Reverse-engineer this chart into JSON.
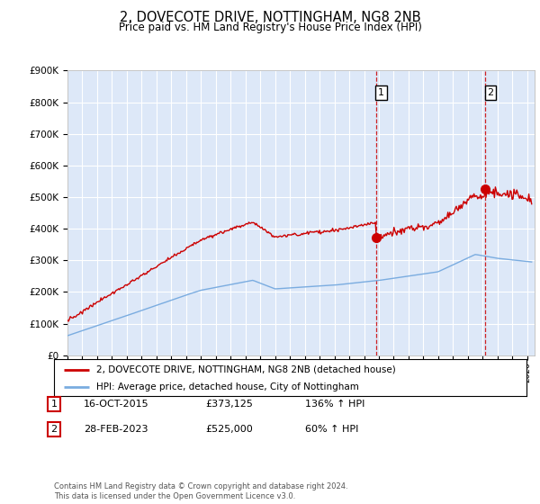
{
  "title": "2, DOVECOTE DRIVE, NOTTINGHAM, NG8 2NB",
  "subtitle": "Price paid vs. HM Land Registry's House Price Index (HPI)",
  "ylim": [
    0,
    900000
  ],
  "yticks": [
    0,
    100000,
    200000,
    300000,
    400000,
    500000,
    600000,
    700000,
    800000,
    900000
  ],
  "ytick_labels": [
    "£0",
    "£100K",
    "£200K",
    "£300K",
    "£400K",
    "£500K",
    "£600K",
    "£700K",
    "£800K",
    "£900K"
  ],
  "background_color": "#ffffff",
  "plot_bg_color": "#dde8f8",
  "grid_color": "#ffffff",
  "red_line_color": "#cc0000",
  "blue_line_color": "#7aace0",
  "marker1_date": 2015.79,
  "marker1_value": 373125,
  "marker2_date": 2023.16,
  "marker2_value": 525000,
  "legend_red": "2, DOVECOTE DRIVE, NOTTINGHAM, NG8 2NB (detached house)",
  "legend_blue": "HPI: Average price, detached house, City of Nottingham",
  "annotation1_date": "16-OCT-2015",
  "annotation1_price": "£373,125",
  "annotation1_hpi": "136% ↑ HPI",
  "annotation2_date": "28-FEB-2023",
  "annotation2_price": "£525,000",
  "annotation2_hpi": "60% ↑ HPI",
  "footnote": "Contains HM Land Registry data © Crown copyright and database right 2024.\nThis data is licensed under the Open Government Licence v3.0.",
  "xmin": 1995.0,
  "xmax": 2026.5
}
